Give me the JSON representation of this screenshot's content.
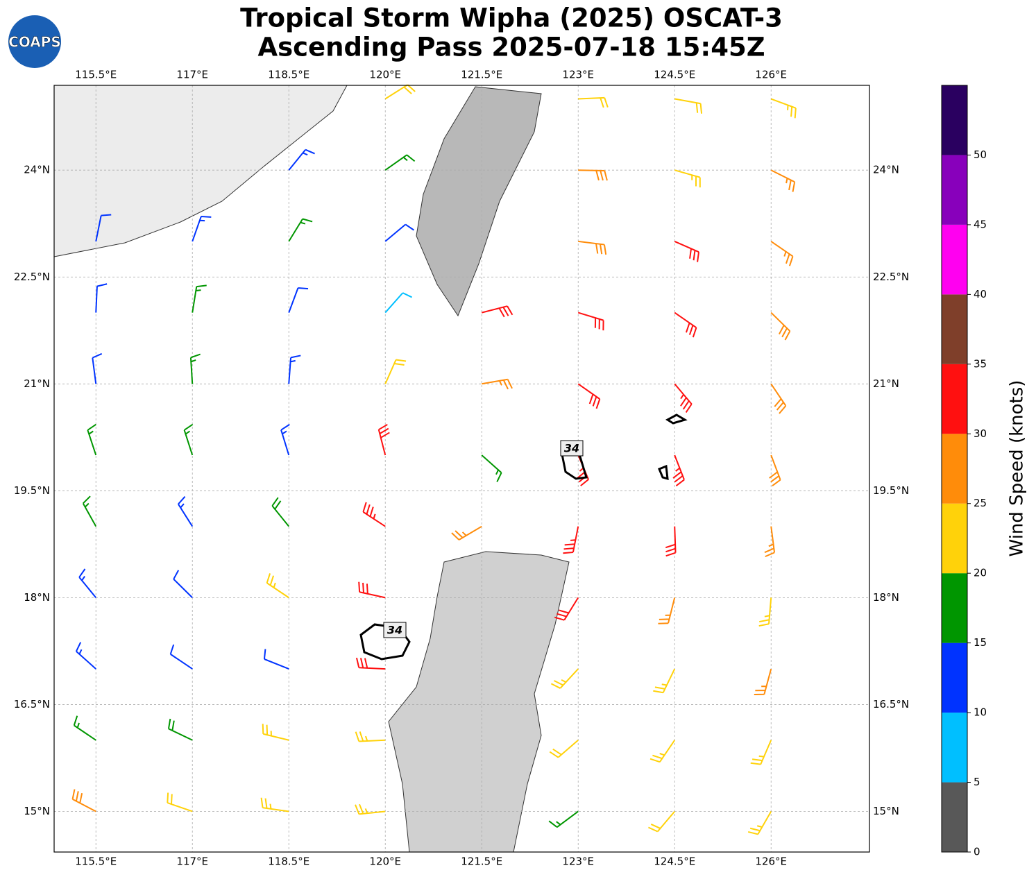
{
  "map": {
    "title": [
      "Tropical Storm Wipha (2025) OSCAT-3",
      "Ascending Pass 2025-07-18 15:45Z"
    ],
    "logo": "COAPS",
    "xlim": [
      114.85,
      127.53
    ],
    "ylim": [
      14.43,
      25.19
    ],
    "lon_ticks": [
      {
        "value": 115.5,
        "label": "115.5°E"
      },
      {
        "value": 117,
        "label": "117°E"
      },
      {
        "value": 118.5,
        "label": "118.5°E"
      },
      {
        "value": 120,
        "label": "120°E"
      },
      {
        "value": 121.5,
        "label": "121.5°E"
      },
      {
        "value": 123,
        "label": "123°E"
      },
      {
        "value": 124.5,
        "label": "124.5°E"
      },
      {
        "value": 126,
        "label": "126°E"
      }
    ],
    "lat_ticks": [
      {
        "value": 24,
        "label": "24°N"
      },
      {
        "value": 22.5,
        "label": "22.5°N"
      },
      {
        "value": 21,
        "label": "21°N"
      },
      {
        "value": 19.5,
        "label": "19.5°N"
      },
      {
        "value": 18,
        "label": "18°N"
      },
      {
        "value": 16.5,
        "label": "16.5°N"
      },
      {
        "value": 15,
        "label": "15°N"
      }
    ],
    "contour_labels": [
      "34",
      "34"
    ],
    "colorbar": {
      "label": "Wind Speed (knots)",
      "lim": [
        0,
        55
      ],
      "ticks": [
        0,
        5,
        10,
        15,
        20,
        25,
        30,
        35,
        40,
        45,
        50
      ],
      "colors": [
        "#585858",
        "#00bfff",
        "#0033ff",
        "#009600",
        "#ffd20a",
        "#ff8c0a",
        "#ff1010",
        "#7f3f2a",
        "#ff00f0",
        "#8800bb",
        "#2a0060"
      ]
    },
    "wind": {
      "lons": [
        115.5,
        117,
        118.5,
        120,
        121.5,
        123,
        124.5,
        126
      ],
      "lats": [
        25,
        24,
        23,
        22,
        21,
        20,
        19,
        18,
        17,
        16,
        15
      ],
      "speed": [
        [
          null,
          null,
          null,
          22,
          null,
          22,
          22,
          24
        ],
        [
          null,
          null,
          14,
          17,
          null,
          28,
          24,
          26
        ],
        [
          12,
          13,
          16,
          12,
          null,
          28,
          30,
          27
        ],
        [
          12,
          17,
          11,
          8,
          32,
          31,
          30,
          28
        ],
        [
          12,
          16,
          14,
          22,
          27,
          32,
          33,
          28
        ],
        [
          15,
          17,
          13,
          31,
          17,
          33,
          34,
          28
        ],
        [
          16,
          14,
          18,
          33,
          26,
          33,
          30,
          26
        ],
        [
          13,
          12,
          23,
          30,
          null,
          30,
          27,
          24
        ],
        [
          14,
          12,
          12,
          32,
          null,
          24,
          24,
          27
        ],
        [
          17,
          19,
          24,
          24,
          null,
          22,
          23,
          24
        ],
        [
          28,
          22,
          23,
          24,
          null,
          17,
          22,
          23
        ]
      ]
    }
  }
}
